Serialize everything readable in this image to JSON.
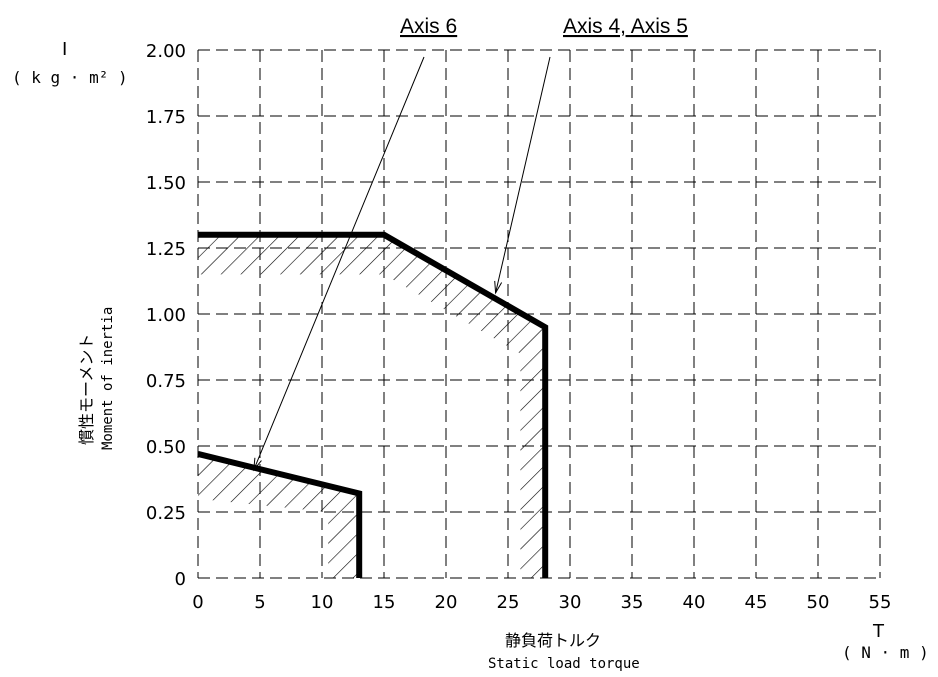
{
  "chart_data": {
    "type": "line",
    "xlim": [
      0,
      55
    ],
    "ylim": [
      0,
      2.0
    ],
    "x_ticks": [
      "0",
      "5",
      "10",
      "15",
      "20",
      "25",
      "30",
      "35",
      "40",
      "45",
      "50",
      "55"
    ],
    "y_ticks": [
      "0",
      "0.25",
      "0.50",
      "0.75",
      "1.00",
      "1.25",
      "1.50",
      "1.75",
      "2.00"
    ],
    "y_symbol": "I",
    "y_unit": "( k g · m² )",
    "y_label_jp": "慣性モーメント",
    "y_label_en": "Moment of inertia",
    "x_symbol": "T",
    "x_unit": "( N · m )",
    "x_label_jp": "静負荷トルク",
    "x_label_en": "Static load torque",
    "grid": true,
    "series": [
      {
        "name": "Axis 4, Axis 5",
        "points": [
          [
            0,
            1.3
          ],
          [
            15,
            1.3
          ],
          [
            28,
            0.95
          ],
          [
            28,
            0
          ]
        ]
      },
      {
        "name": "Axis 6",
        "points": [
          [
            0,
            0.47
          ],
          [
            13,
            0.32
          ],
          [
            13,
            0
          ]
        ]
      }
    ]
  }
}
